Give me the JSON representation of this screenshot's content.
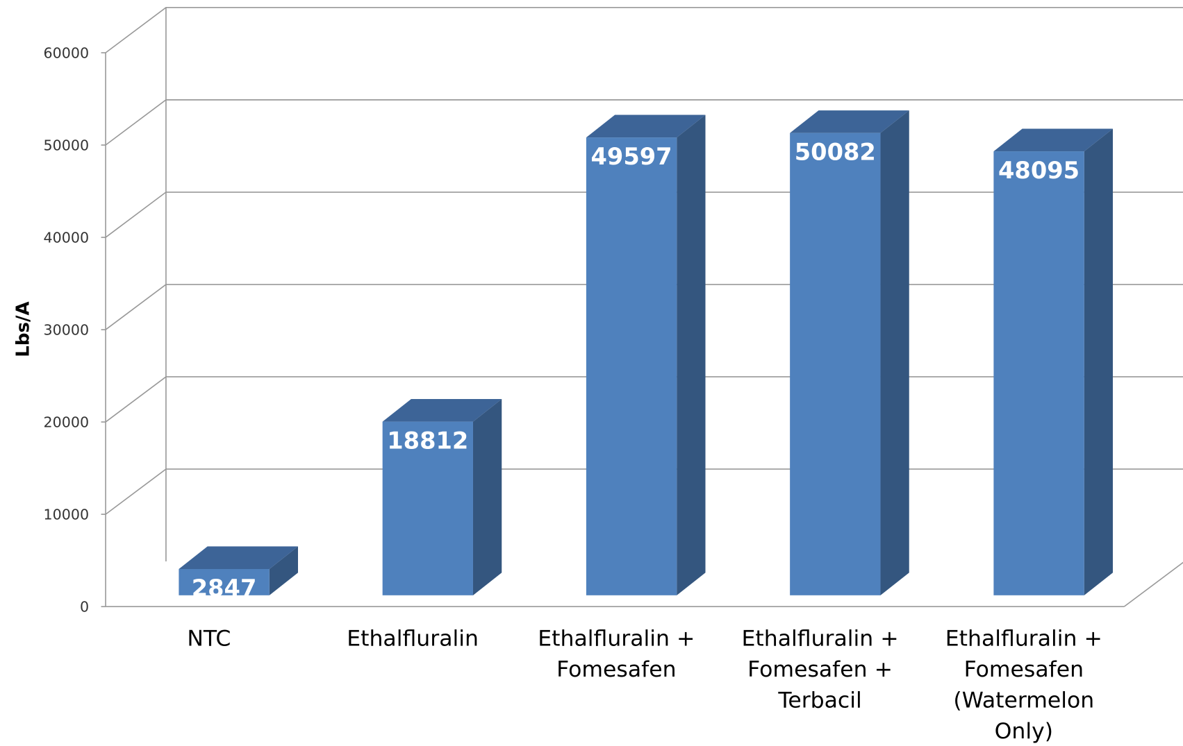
{
  "chart_data": {
    "type": "bar3d",
    "y_label": "Lbs/A",
    "categories": [
      "NTC",
      "Ethalfluralin",
      "Ethalfluralin  +\nFomesafen",
      "Ethalfluralin +\nFomesafen  +\nTerbacil",
      "Ethalfluralin +\nFomesafen\n(Watermelon\nOnly)"
    ],
    "values": [
      2847,
      18812,
      49597,
      50082,
      48095
    ],
    "color": "#4f81bd",
    "ylim": [
      0,
      60000
    ],
    "yticks": [
      0,
      10000,
      20000,
      30000,
      40000,
      50000,
      60000
    ],
    "grid": true
  }
}
